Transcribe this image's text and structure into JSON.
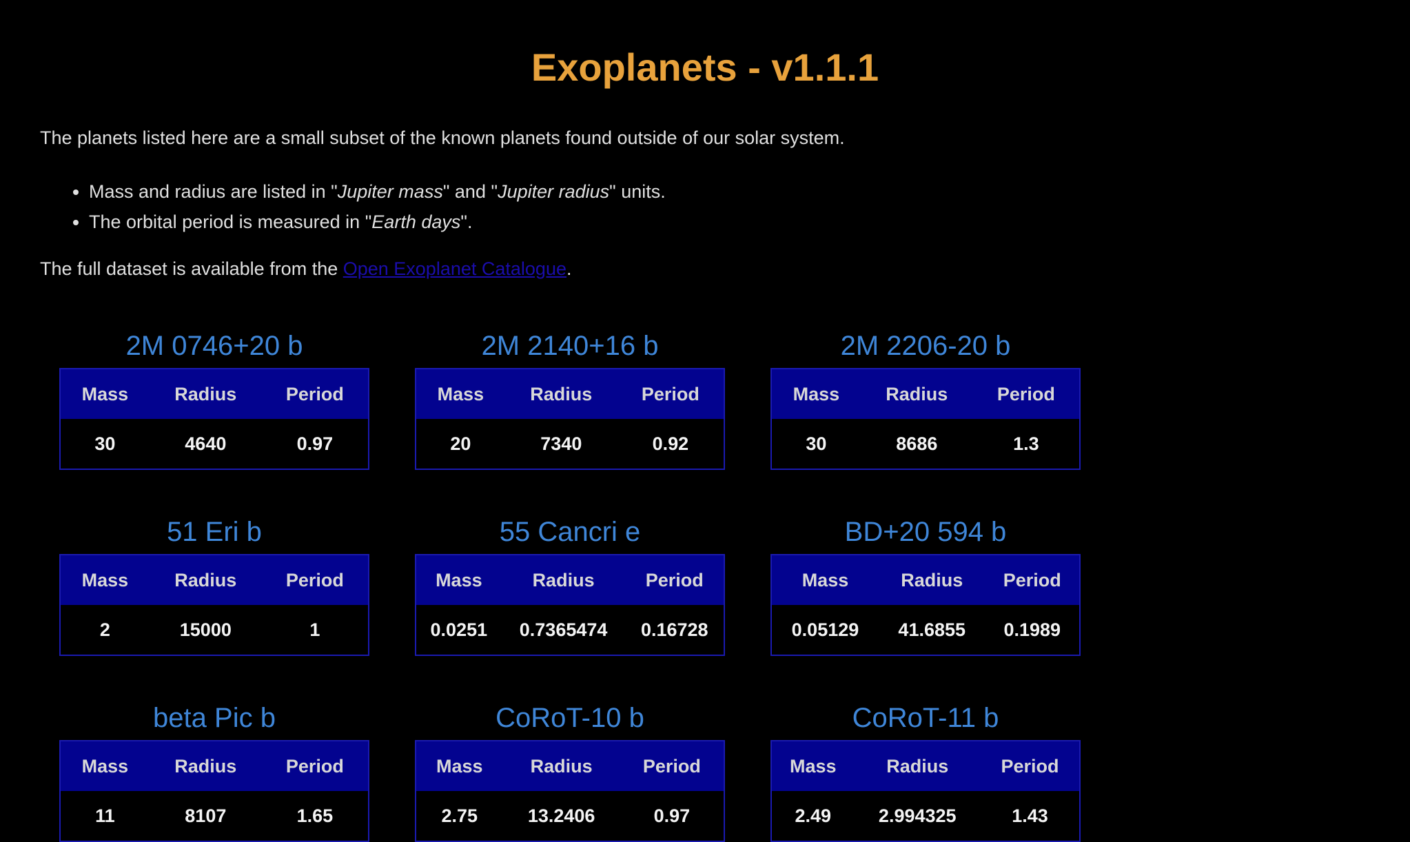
{
  "title": "Exoplanets - v1.1.1",
  "intro": "The planets listed here are a small subset of the known planets found outside of our solar system.",
  "notes": {
    "mass_radius": {
      "before": "Mass and radius are listed in \"",
      "mass_unit": "Jupiter mass",
      "middle": "\" and \"",
      "radius_unit": "Jupiter radius",
      "after": "\" units."
    },
    "period": {
      "before": "The orbital period is measured in \"",
      "unit": "Earth days",
      "after": "\"."
    }
  },
  "source": {
    "before": "The full dataset is available from the ",
    "link_text": "Open Exoplanet Catalogue",
    "after": "."
  },
  "columns": [
    "Mass",
    "Radius",
    "Period"
  ],
  "planets": [
    {
      "name": "2M 0746+20 b",
      "mass": "30",
      "radius": "4640",
      "period": "0.97"
    },
    {
      "name": "2M 2140+16 b",
      "mass": "20",
      "radius": "7340",
      "period": "0.92"
    },
    {
      "name": "2M 2206-20 b",
      "mass": "30",
      "radius": "8686",
      "period": "1.3"
    },
    {
      "name": "51 Eri b",
      "mass": "2",
      "radius": "15000",
      "period": "1"
    },
    {
      "name": "55 Cancri e",
      "mass": "0.0251",
      "radius": "0.7365474",
      "period": "0.16728"
    },
    {
      "name": "BD+20 594 b",
      "mass": "0.05129",
      "radius": "41.6855",
      "period": "0.1989"
    },
    {
      "name": "beta Pic b",
      "mass": "11",
      "radius": "8107",
      "period": "1.65"
    },
    {
      "name": "CoRoT-10 b",
      "mass": "2.75",
      "radius": "13.2406",
      "period": "0.97"
    },
    {
      "name": "CoRoT-11 b",
      "mass": "2.49",
      "radius": "2.994325",
      "period": "1.43"
    }
  ]
}
